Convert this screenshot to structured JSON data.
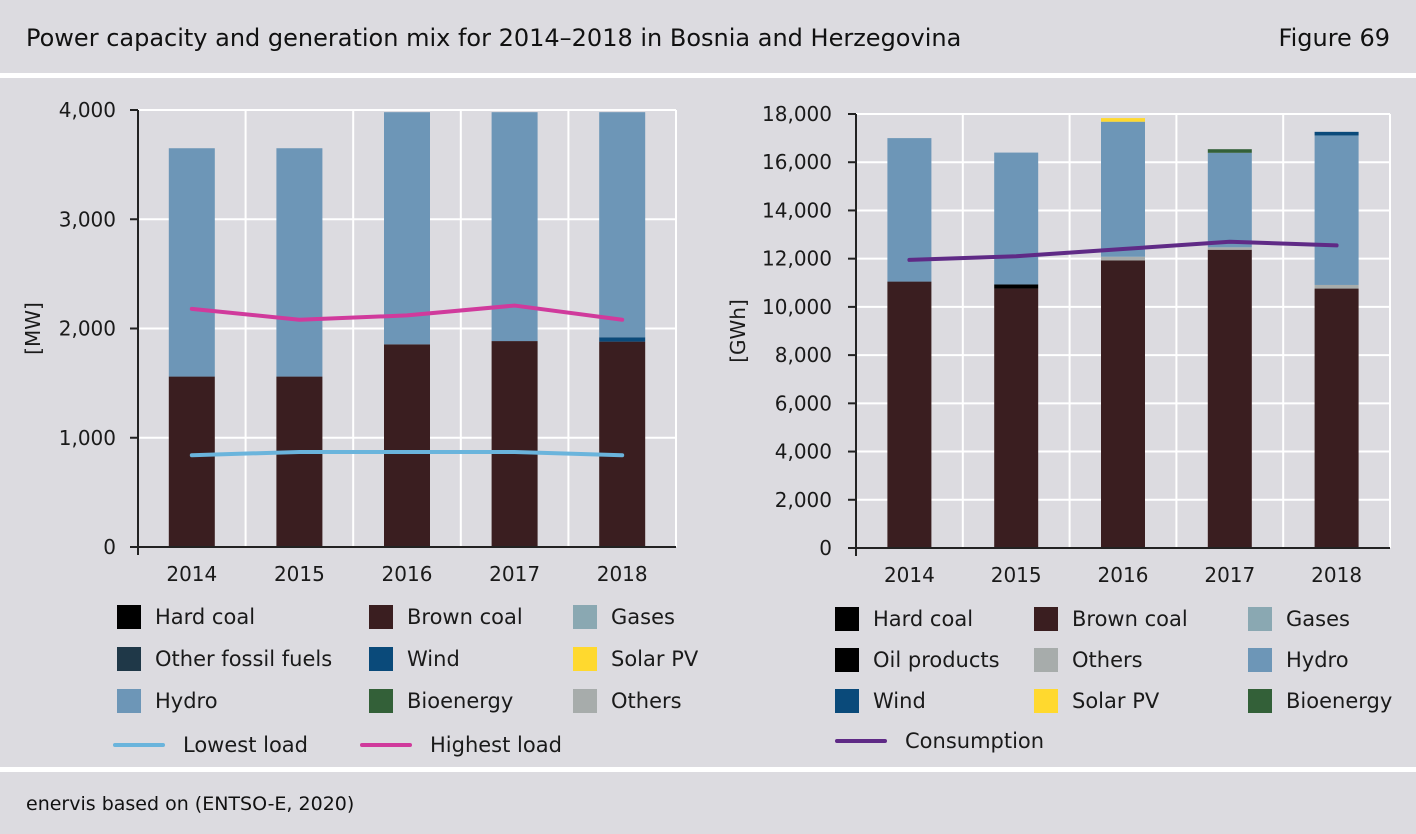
{
  "header": {
    "title": "Power capacity and generation mix for 2014–2018 in Bosnia and Herzegovina",
    "figure": "Figure 69"
  },
  "footer": {
    "source": "enervis based on (ENTSO-E, 2020)"
  },
  "colors": {
    "hard_coal": "#000000",
    "brown_coal": "#3a1e20",
    "gases": "#8aa8b2",
    "other_fossil_fuels": "#1f3848",
    "oil_products": "#000000",
    "wind": "#0a4a7a",
    "solar_pv": "#ffd92e",
    "hydro": "#6d96b7",
    "bioenergy": "#336038",
    "others": "#a7acab",
    "lowest_load": "#6ab4dc",
    "highest_load": "#d03a9c",
    "consumption": "#5f2a86",
    "grid": "#ffffff"
  },
  "chart_data": [
    {
      "type": "bar",
      "stacked": true,
      "categories": [
        "2014",
        "2015",
        "2016",
        "2017",
        "2018"
      ],
      "ylabel": "[MW]",
      "ylim": [
        0,
        4000
      ],
      "yticks": [
        "0",
        "1,000",
        "2,000",
        "3,000",
        "4,000"
      ],
      "ytick_values": [
        0,
        1000,
        2000,
        3000,
        4000
      ],
      "grid": true,
      "series": [
        {
          "name": "Hard coal",
          "key": "hard_coal",
          "values": [
            0,
            0,
            0,
            0,
            0
          ]
        },
        {
          "name": "Brown coal",
          "key": "brown_coal",
          "values": [
            1560,
            1560,
            1855,
            1885,
            1880
          ]
        },
        {
          "name": "Gases",
          "key": "gases",
          "values": [
            0,
            0,
            0,
            0,
            0
          ]
        },
        {
          "name": "Other fossil fuels",
          "key": "other_fossil_fuels",
          "values": [
            0,
            0,
            0,
            0,
            0
          ]
        },
        {
          "name": "Wind",
          "key": "wind",
          "values": [
            0,
            0,
            0,
            0,
            40
          ]
        },
        {
          "name": "Solar PV",
          "key": "solar_pv",
          "values": [
            0,
            0,
            0,
            0,
            0
          ]
        },
        {
          "name": "Hydro",
          "key": "hydro",
          "values": [
            2090,
            2090,
            2125,
            2095,
            2060
          ]
        },
        {
          "name": "Bioenergy",
          "key": "bioenergy",
          "values": [
            0,
            0,
            0,
            0,
            0
          ]
        },
        {
          "name": "Others",
          "key": "others",
          "values": [
            0,
            0,
            0,
            0,
            0
          ]
        }
      ],
      "lines": [
        {
          "name": "Lowest load",
          "key": "lowest_load",
          "values": [
            840,
            870,
            870,
            870,
            840
          ]
        },
        {
          "name": "Highest load",
          "key": "highest_load",
          "values": [
            2180,
            2080,
            2120,
            2210,
            2080
          ]
        }
      ],
      "legend": [
        {
          "label": "Hard coal",
          "key": "hard_coal"
        },
        {
          "label": "Brown coal",
          "key": "brown_coal"
        },
        {
          "label": "Gases",
          "key": "gases"
        },
        {
          "label": "Other fossil fuels",
          "key": "other_fossil_fuels"
        },
        {
          "label": "Wind",
          "key": "wind"
        },
        {
          "label": "Solar PV",
          "key": "solar_pv"
        },
        {
          "label": "Hydro",
          "key": "hydro"
        },
        {
          "label": "Bioenergy",
          "key": "bioenergy"
        },
        {
          "label": "Others",
          "key": "others"
        }
      ],
      "line_legend": [
        {
          "label": "Lowest load",
          "key": "lowest_load"
        },
        {
          "label": "Highest load",
          "key": "highest_load"
        }
      ]
    },
    {
      "type": "bar",
      "stacked": true,
      "categories": [
        "2014",
        "2015",
        "2016",
        "2017",
        "2018"
      ],
      "ylabel": "[GWh]",
      "ylim": [
        0,
        18000
      ],
      "yticks": [
        "0",
        "2,000",
        "4,000",
        "6,000",
        "8,000",
        "10,000",
        "12,000",
        "14,000",
        "16,000",
        "18,000"
      ],
      "ytick_values": [
        0,
        2000,
        4000,
        6000,
        8000,
        10000,
        12000,
        14000,
        16000,
        18000
      ],
      "grid": true,
      "series": [
        {
          "name": "Hard coal",
          "key": "hard_coal",
          "values": [
            0,
            0,
            0,
            0,
            0
          ]
        },
        {
          "name": "Brown coal",
          "key": "brown_coal",
          "values": [
            11050,
            10760,
            11930,
            12370,
            10760
          ]
        },
        {
          "name": "Oil products",
          "key": "oil_products",
          "values": [
            0,
            170,
            0,
            0,
            0
          ]
        },
        {
          "name": "Gases",
          "key": "gases",
          "values": [
            0,
            0,
            0,
            0,
            0
          ]
        },
        {
          "name": "Others",
          "key": "others",
          "values": [
            0,
            0,
            150,
            100,
            150
          ]
        },
        {
          "name": "Hydro",
          "key": "hydro",
          "values": [
            5950,
            5470,
            5600,
            3920,
            6200
          ]
        },
        {
          "name": "Wind",
          "key": "wind",
          "values": [
            0,
            0,
            0,
            0,
            150
          ]
        },
        {
          "name": "Solar PV",
          "key": "solar_pv",
          "values": [
            0,
            0,
            150,
            0,
            0
          ]
        },
        {
          "name": "Bioenergy",
          "key": "bioenergy",
          "values": [
            0,
            0,
            0,
            150,
            0
          ]
        }
      ],
      "lines": [
        {
          "name": "Consumption",
          "key": "consumption",
          "values": [
            11950,
            12100,
            12400,
            12700,
            12550
          ]
        }
      ],
      "legend": [
        {
          "label": "Hard coal",
          "key": "hard_coal"
        },
        {
          "label": "Brown coal",
          "key": "brown_coal"
        },
        {
          "label": "Gases",
          "key": "gases"
        },
        {
          "label": "Oil products",
          "key": "oil_products"
        },
        {
          "label": "Others",
          "key": "others"
        },
        {
          "label": "Hydro",
          "key": "hydro"
        },
        {
          "label": "Wind",
          "key": "wind"
        },
        {
          "label": "Solar PV",
          "key": "solar_pv"
        },
        {
          "label": "Bioenergy",
          "key": "bioenergy"
        }
      ],
      "line_legend": [
        {
          "label": "Consumption",
          "key": "consumption"
        }
      ]
    }
  ]
}
